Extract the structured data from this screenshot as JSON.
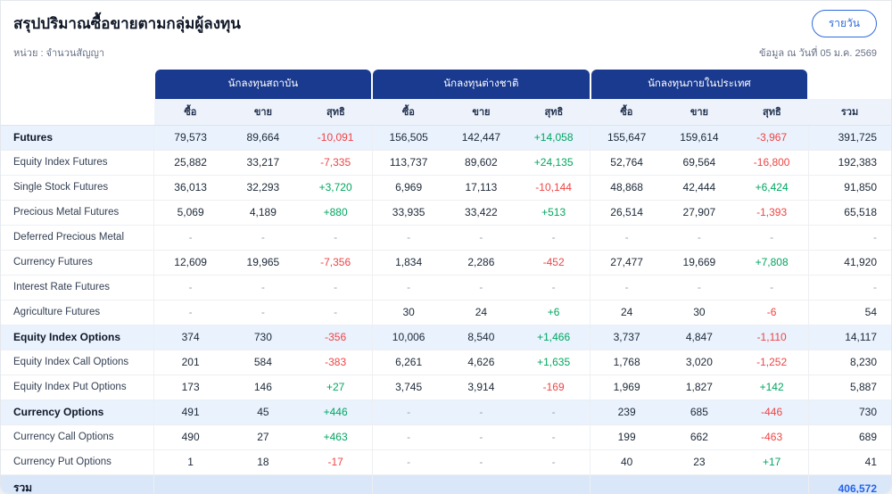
{
  "header": {
    "title": "สรุปปริมาณซื้อขายตามกลุ่มผู้ลงทุน",
    "daily_button_label": "รายวัน",
    "unit_label": "หน่วย : จำนวนสัญญา",
    "as_of_label": "ข้อมูล ณ วันที่ 05 ม.ค. 2569"
  },
  "colors": {
    "header_blue": "#1a3a8f",
    "positive": "#00a661",
    "negative": "#ef4444",
    "total_blue": "#2563eb"
  },
  "table": {
    "group_headers": [
      "นักลงทุนสถาบัน",
      "นักลงทุนต่างชาติ",
      "นักลงทุนภายในประเทศ"
    ],
    "sub_headers": [
      "ซื้อ",
      "ขาย",
      "สุทธิ"
    ],
    "total_header": "รวม",
    "rows": [
      {
        "label": "Futures",
        "section": true,
        "cells": [
          "79,573",
          "89,664",
          "-10,091",
          "156,505",
          "142,447",
          "+14,058",
          "155,647",
          "159,614",
          "-3,967"
        ],
        "total": "391,725"
      },
      {
        "label": "Equity Index Futures",
        "section": false,
        "cells": [
          "25,882",
          "33,217",
          "-7,335",
          "113,737",
          "89,602",
          "+24,135",
          "52,764",
          "69,564",
          "-16,800"
        ],
        "total": "192,383"
      },
      {
        "label": "Single Stock Futures",
        "section": false,
        "cells": [
          "36,013",
          "32,293",
          "+3,720",
          "6,969",
          "17,113",
          "-10,144",
          "48,868",
          "42,444",
          "+6,424"
        ],
        "total": "91,850"
      },
      {
        "label": "Precious Metal Futures",
        "section": false,
        "cells": [
          "5,069",
          "4,189",
          "+880",
          "33,935",
          "33,422",
          "+513",
          "26,514",
          "27,907",
          "-1,393"
        ],
        "total": "65,518"
      },
      {
        "label": "Deferred Precious Metal",
        "section": false,
        "cells": [
          "-",
          "-",
          "-",
          "-",
          "-",
          "-",
          "-",
          "-",
          "-"
        ],
        "total": "-"
      },
      {
        "label": "Currency Futures",
        "section": false,
        "cells": [
          "12,609",
          "19,965",
          "-7,356",
          "1,834",
          "2,286",
          "-452",
          "27,477",
          "19,669",
          "+7,808"
        ],
        "total": "41,920"
      },
      {
        "label": "Interest Rate Futures",
        "section": false,
        "cells": [
          "-",
          "-",
          "-",
          "-",
          "-",
          "-",
          "-",
          "-",
          "-"
        ],
        "total": "-"
      },
      {
        "label": "Agriculture Futures",
        "section": false,
        "cells": [
          "-",
          "-",
          "-",
          "30",
          "24",
          "+6",
          "24",
          "30",
          "-6"
        ],
        "total": "54"
      },
      {
        "label": "Equity Index Options",
        "section": true,
        "cells": [
          "374",
          "730",
          "-356",
          "10,006",
          "8,540",
          "+1,466",
          "3,737",
          "4,847",
          "-1,110"
        ],
        "total": "14,117"
      },
      {
        "label": "Equity Index Call Options",
        "section": false,
        "cells": [
          "201",
          "584",
          "-383",
          "6,261",
          "4,626",
          "+1,635",
          "1,768",
          "3,020",
          "-1,252"
        ],
        "total": "8,230"
      },
      {
        "label": "Equity Index Put Options",
        "section": false,
        "cells": [
          "173",
          "146",
          "+27",
          "3,745",
          "3,914",
          "-169",
          "1,969",
          "1,827",
          "+142"
        ],
        "total": "5,887"
      },
      {
        "label": "Currency Options",
        "section": true,
        "cells": [
          "491",
          "45",
          "+446",
          "-",
          "-",
          "-",
          "239",
          "685",
          "-446"
        ],
        "total": "730"
      },
      {
        "label": "Currency Call Options",
        "section": false,
        "cells": [
          "490",
          "27",
          "+463",
          "-",
          "-",
          "-",
          "199",
          "662",
          "-463"
        ],
        "total": "689"
      },
      {
        "label": "Currency Put Options",
        "section": false,
        "cells": [
          "1",
          "18",
          "-17",
          "-",
          "-",
          "-",
          "40",
          "23",
          "+17"
        ],
        "total": "41"
      }
    ],
    "footer": {
      "label": "รวม",
      "total": "406,572"
    }
  }
}
